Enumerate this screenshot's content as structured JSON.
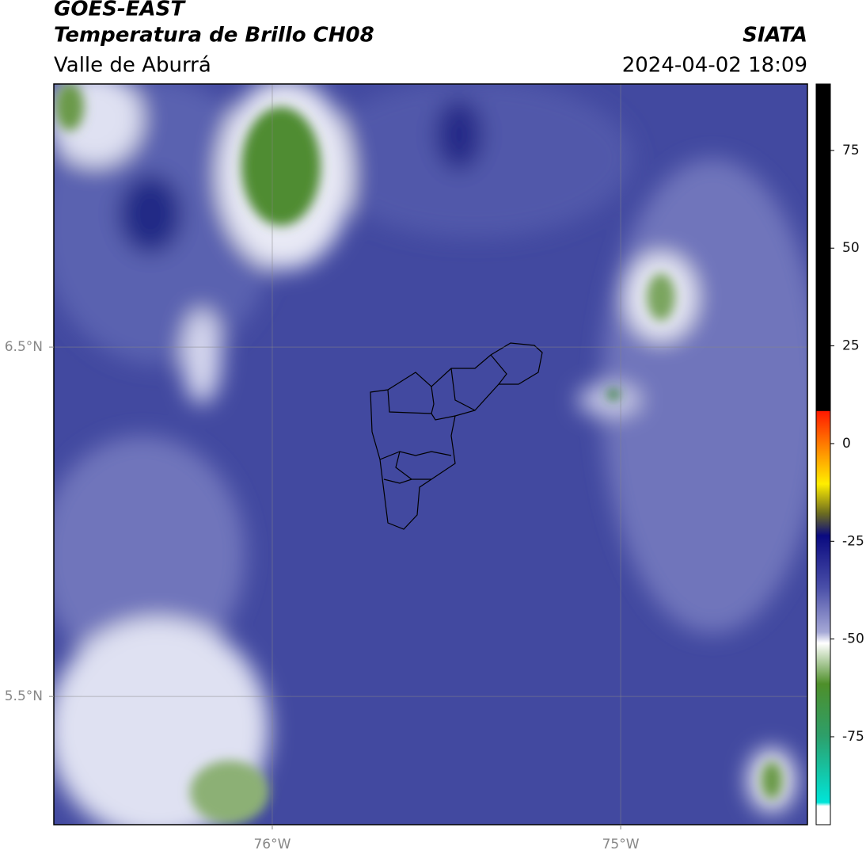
{
  "header": {
    "title": "GOES-EAST",
    "subtitle": "Temperatura de Brillo CH08",
    "region": "Valle de Aburrá",
    "source": "SIATA",
    "datetime": "2024-04-02 18:09"
  },
  "map": {
    "xlim": [
      -76.627,
      -74.464
    ],
    "ylim": [
      5.133,
      7.253
    ],
    "xticks": [
      {
        "value": -76,
        "label": "76°W"
      },
      {
        "value": -75,
        "label": "75°W"
      }
    ],
    "yticks": [
      {
        "value": 6.5,
        "label": "6.5°N"
      },
      {
        "value": 5.5,
        "label": "5.5°N"
      }
    ],
    "grid": true
  },
  "colorbar": {
    "lim": [
      -97.5,
      92
    ],
    "ticks": [
      75,
      50,
      25,
      0,
      -25,
      -50,
      -75
    ]
  }
}
